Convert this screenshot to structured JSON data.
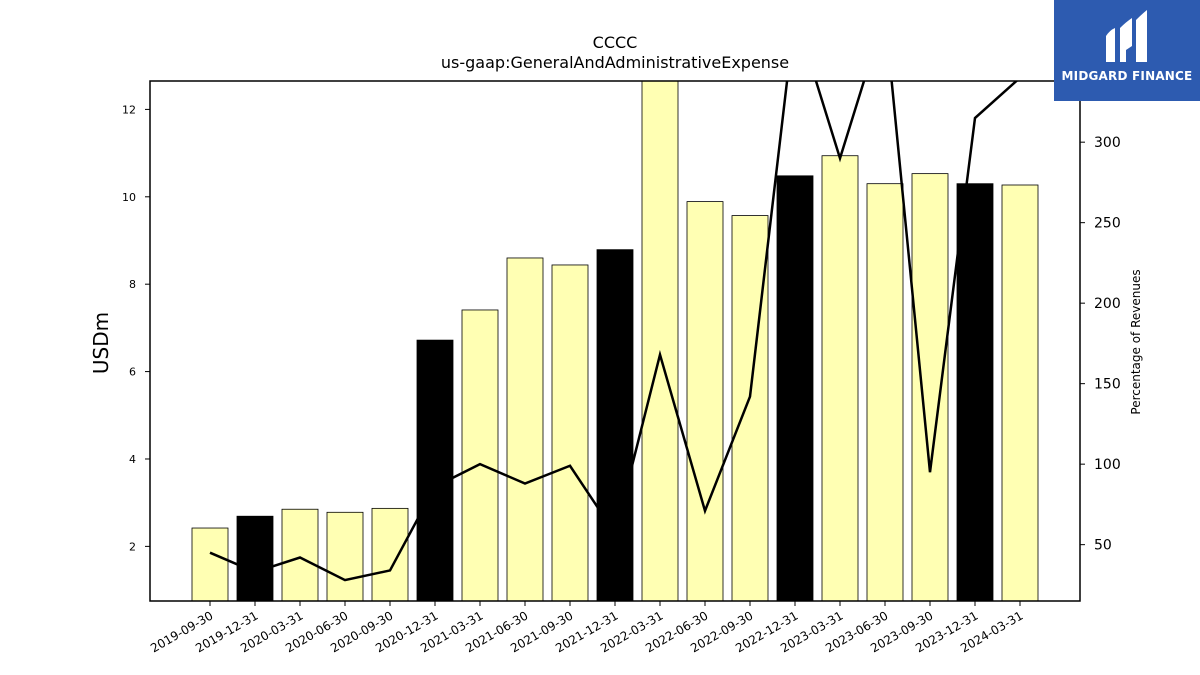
{
  "chart_data": {
    "type": "bar",
    "title": "CCCC",
    "subtitle": "us-gaap:GeneralAndAdministrativeExpense",
    "ylabel": "USDm",
    "ylabel_right": "Percentage of Revenues",
    "categories": [
      "2019-09-30",
      "2019-12-31",
      "2020-03-31",
      "2020-06-30",
      "2020-09-30",
      "2020-12-31",
      "2021-03-31",
      "2021-06-30",
      "2021-09-30",
      "2021-12-31",
      "2022-03-31",
      "2022-06-30",
      "2022-09-30",
      "2022-12-31",
      "2023-03-31",
      "2023-06-30",
      "2023-09-30",
      "2023-12-31",
      "2024-03-31"
    ],
    "values": [
      2.42,
      2.69,
      2.85,
      2.78,
      2.87,
      6.72,
      7.41,
      8.6,
      8.44,
      8.79,
      12.8,
      9.89,
      9.57,
      10.48,
      10.94,
      10.3,
      10.53,
      10.3,
      10.27
    ],
    "bar_colors": [
      "#ffffb3",
      "#000000",
      "#ffffb3",
      "#ffffb3",
      "#ffffb3",
      "#000000",
      "#ffffb3",
      "#ffffb3",
      "#ffffb3",
      "#000000",
      "#ffffb3",
      "#ffffb3",
      "#ffffb3",
      "#000000",
      "#ffffb3",
      "#ffffb3",
      "#ffffb3",
      "#000000",
      "#ffffb3"
    ],
    "line_values": [
      45,
      33,
      42,
      28,
      34,
      86,
      100,
      88,
      99,
      57,
      168,
      71,
      142,
      380,
      290,
      380,
      95,
      315,
      340
    ],
    "ylim": [
      0.75,
      12.65
    ],
    "ylim_right": [
      15,
      338
    ],
    "yticks": [
      2,
      4,
      6,
      8,
      10,
      12
    ],
    "yticks_right": [
      50,
      100,
      150,
      200,
      250,
      300
    ],
    "grid": false
  },
  "logo": {
    "text": "MIDGARD FINANCE"
  }
}
